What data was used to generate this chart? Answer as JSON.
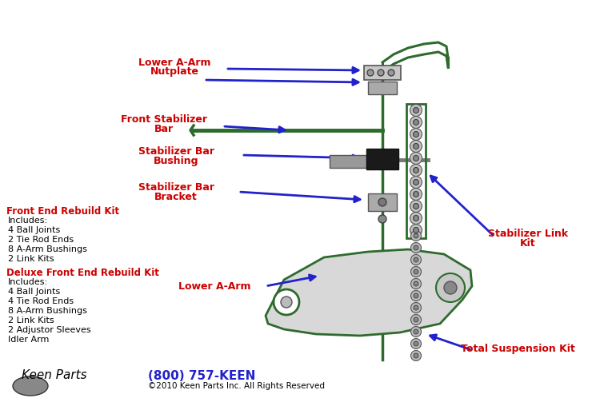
{
  "bg_color": "#ffffff",
  "labels": {
    "lower_a_arm_nutplate_1": "Lower A-Arm",
    "lower_a_arm_nutplate_2": "Nutplate",
    "front_stabilizer_bar_1": "Front Stabilizer",
    "front_stabilizer_bar_2": "Bar",
    "stabilizer_bar_bushing_1": "Stabilizer Bar",
    "stabilizer_bar_bushing_2": "Bushing",
    "stabilizer_bar_bracket_1": "Stabilizer Bar",
    "stabilizer_bar_bracket_2": "Bracket",
    "stabilizer_link_kit_1": "Stabilizer Link",
    "stabilizer_link_kit_2": "Kit",
    "lower_a_arm": "Lower A-Arm",
    "total_suspension_kit": "Total Suspension Kit",
    "front_end_rebuild_kit": "Front End Rebuild Kit",
    "front_end_rebuild_lines": [
      "Includes:",
      "4 Ball Joints",
      "2 Tie Rod Ends",
      "8 A-Arm Bushings",
      "2 Link Kits"
    ],
    "deluxe_front_end_rebuild_kit": "Deluxe Front End Rebuild Kit",
    "deluxe_lines": [
      "Includes:",
      "4 Ball Joints",
      "4 Tie Rod Ends",
      "8 A-Arm Bushings",
      "2 Link Kits",
      "2 Adjustor Sleeves",
      "Idler Arm"
    ],
    "phone": "(800) 757-KEEN",
    "copyright": "©2010 Keen Parts Inc. All Rights Reserved"
  },
  "colors": {
    "label_color": "#cc0000",
    "arrow_color": "#2222cc",
    "body_text": "#000000",
    "phone_color": "#2222cc",
    "diagram_color": "#2d6b2d",
    "part_color": "#888888"
  }
}
